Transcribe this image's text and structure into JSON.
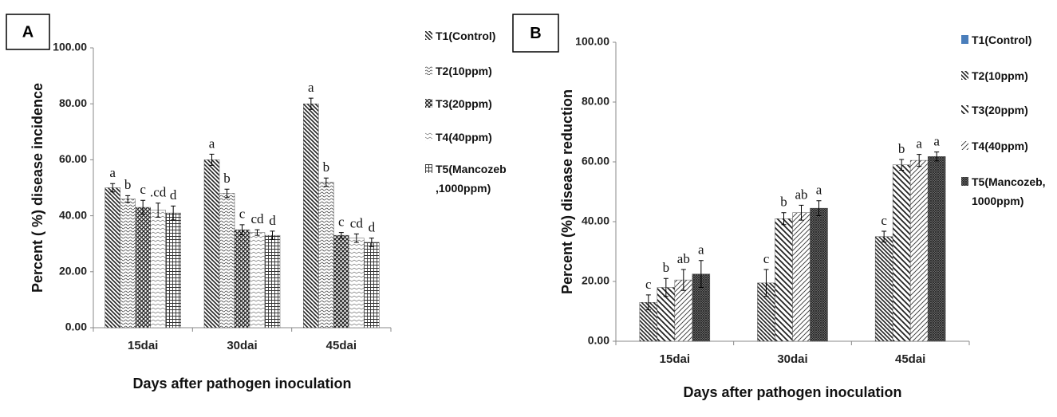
{
  "chart_data": [
    {
      "type": "bar",
      "panel": "A",
      "ylabel": "Percent  ( %) disease incidence",
      "xlabel": "Days after pathogen inoculation",
      "categories": [
        "15dai",
        "30dai",
        "45dai"
      ],
      "ylim": [
        0,
        100
      ],
      "yticks": [
        {
          "value": 0,
          "label": "0.00"
        },
        {
          "value": 20,
          "label": "20.00"
        },
        {
          "value": 40,
          "label": "40.00"
        },
        {
          "value": 60,
          "label": "60.00"
        },
        {
          "value": 80,
          "label": "80.00"
        },
        {
          "value": 100,
          "label": "100.00"
        }
      ],
      "series": [
        {
          "name": "T1(Control)",
          "color": "#222222",
          "pattern": "back-diagonal",
          "values": [
            50,
            60,
            80
          ],
          "errors": [
            1.5,
            2,
            2
          ],
          "letters": [
            "a",
            "a",
            "a"
          ]
        },
        {
          "name": "T2(10ppm)",
          "color": "#444444",
          "pattern": "wave",
          "values": [
            46,
            48,
            52
          ],
          "errors": [
            1.2,
            1.5,
            1.5
          ],
          "letters": [
            "b",
            "b",
            "b"
          ]
        },
        {
          "name": "T3(20ppm)",
          "color": "#222222",
          "pattern": "crosshatch",
          "values": [
            43,
            35,
            33
          ],
          "errors": [
            2.5,
            1.8,
            1
          ],
          "letters": [
            "c",
            "c",
            "c"
          ]
        },
        {
          "name": "T4(40ppm)",
          "color": "#666666",
          "pattern": "zigzag",
          "values": [
            42,
            34,
            32
          ],
          "errors": [
            2.5,
            1,
            1.5
          ],
          "letters": [
            ".cd",
            "cd",
            "cd"
          ]
        },
        {
          "name": "T5(Mancozeb ,1000ppm)",
          "color": "#333333",
          "pattern": "grid",
          "values": [
            41,
            33,
            30.5
          ],
          "errors": [
            2.5,
            1.5,
            1.5
          ],
          "letters": [
            "d",
            "d",
            "d"
          ]
        }
      ]
    },
    {
      "type": "bar",
      "panel": "B",
      "ylabel": "Percent (%) disease reduction",
      "xlabel": "Days after pathogen inoculation",
      "categories": [
        "15dai",
        "30dai",
        "45dai"
      ],
      "ylim": [
        0,
        100
      ],
      "yticks": [
        {
          "value": 0,
          "label": "0.00"
        },
        {
          "value": 20,
          "label": "20.00"
        },
        {
          "value": 40,
          "label": "40.00"
        },
        {
          "value": 60,
          "label": "60.00"
        },
        {
          "value": 80,
          "label": "80.00"
        },
        {
          "value": 100,
          "label": "100.00"
        }
      ],
      "series": [
        {
          "name": "T1(Control)",
          "color": "#4a7ebb",
          "pattern": "solid",
          "values": [
            null,
            null,
            null
          ],
          "errors": [
            null,
            null,
            null
          ],
          "letters": [
            null,
            null,
            null
          ]
        },
        {
          "name": "T2(10ppm)",
          "color": "#222222",
          "pattern": "back-diagonal",
          "values": [
            13,
            19.5,
            35
          ],
          "errors": [
            2.5,
            4.5,
            1.8
          ],
          "letters": [
            "c",
            "c",
            "c"
          ]
        },
        {
          "name": "T3(20ppm)",
          "color": "#222222",
          "pattern": "back-diagonal-wide",
          "values": [
            18,
            41,
            59
          ],
          "errors": [
            3,
            2,
            1.8
          ],
          "letters": [
            "b",
            "b",
            "b"
          ]
        },
        {
          "name": "T4(40ppm)",
          "color": "#333333",
          "pattern": "forward-diagonal",
          "values": [
            20.5,
            43,
            60.5
          ],
          "errors": [
            3.5,
            2.5,
            2
          ],
          "letters": [
            "ab",
            "ab",
            "a"
          ]
        },
        {
          "name": "T5(Mancozeb, 1000ppm)",
          "color": "#222222",
          "pattern": "dense-cross",
          "values": [
            22.5,
            44.5,
            61.8
          ],
          "errors": [
            4.5,
            2.5,
            1.5
          ],
          "letters": [
            "a",
            "a",
            "a"
          ]
        }
      ]
    }
  ]
}
